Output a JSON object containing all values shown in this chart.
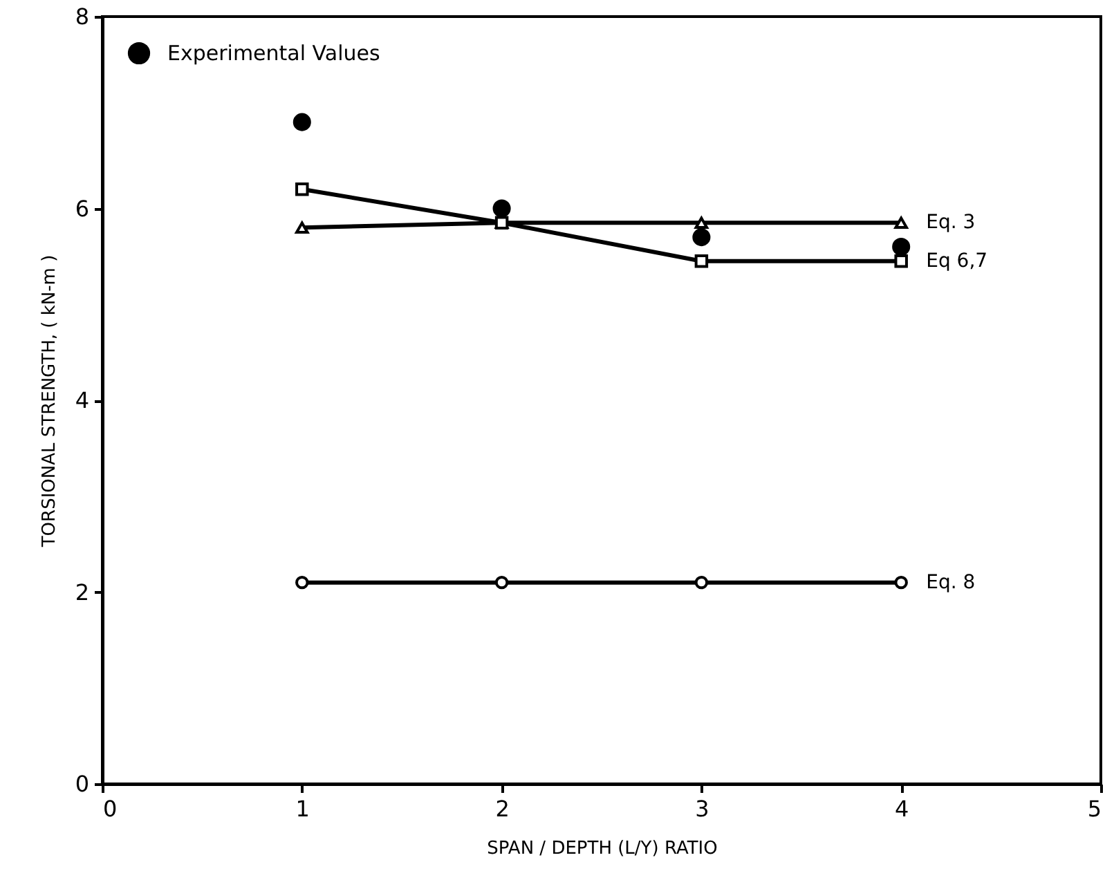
{
  "chart_data": {
    "type": "line",
    "xlabel": "SPAN / DEPTH (L/Y) RATIO",
    "ylabel": "TORSIONAL STRENGTH, ( kN-m )",
    "x": [
      1,
      2,
      3,
      4
    ],
    "xlim": [
      0,
      5
    ],
    "xticks": [
      0,
      1,
      2,
      3,
      4,
      5
    ],
    "ylim": [
      0,
      8
    ],
    "yticks": [
      0,
      2,
      4,
      6,
      8
    ],
    "grid": false,
    "legend": "top left",
    "line_style": "solid",
    "series": [
      {
        "name": "Experimental Values",
        "type": "scatter",
        "marker": "circle",
        "color": "#000000",
        "values": [
          6.9,
          6.0,
          5.7,
          5.6
        ]
      },
      {
        "name": "Eq. 3",
        "marker": "triangle",
        "color": "#000000",
        "values": [
          5.8,
          5.85,
          5.85,
          5.85
        ]
      },
      {
        "name": "Eq 6,7",
        "marker": "square",
        "color": "#000000",
        "values": [
          6.2,
          5.85,
          5.45,
          5.45
        ]
      },
      {
        "name": "Eq. 8",
        "marker": "circle",
        "color": "#000000",
        "values": [
          2.1,
          2.1,
          2.1,
          2.1
        ]
      }
    ]
  }
}
